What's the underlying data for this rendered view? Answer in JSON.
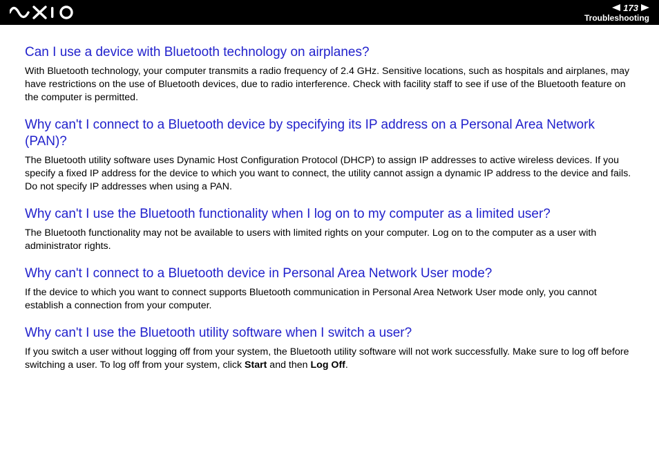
{
  "header": {
    "page_number": "173",
    "section_label": "Troubleshooting",
    "colors": {
      "bar_bg": "#000000",
      "text": "#ffffff"
    }
  },
  "content": {
    "question_color": "#2222cc",
    "body_text_color": "#000000",
    "qa": [
      {
        "question": "Can I use a device with Bluetooth technology on airplanes?",
        "answer": "With Bluetooth technology, your computer transmits a radio frequency of 2.4 GHz. Sensitive locations, such as hospitals and airplanes, may have restrictions on the use of Bluetooth devices, due to radio interference. Check with facility staff to see if use of the Bluetooth feature on the computer is permitted."
      },
      {
        "question": "Why can't I connect to a Bluetooth device by specifying its IP address on a Personal Area Network (PAN)?",
        "answer": "The Bluetooth utility software uses Dynamic Host Configuration Protocol (DHCP) to assign IP addresses to active wireless devices. If you specify a fixed IP address for the device to which you want to connect, the utility cannot assign a dynamic IP address to the device and fails. Do not specify IP addresses when using a PAN."
      },
      {
        "question": "Why can't I use the Bluetooth functionality when I log on to my computer as a limited user?",
        "answer": "The Bluetooth functionality may not be available to users with limited rights on your computer. Log on to the computer as a user with administrator rights."
      },
      {
        "question": "Why can't I connect to a Bluetooth device in Personal Area Network User mode?",
        "answer": "If the device to which you want to connect supports Bluetooth communication in Personal Area Network User mode only, you cannot establish a connection from your computer."
      },
      {
        "question": "Why can't I use the Bluetooth utility software when I switch a user?",
        "answer_html": "If you switch a user without logging off from your system, the Bluetooth utility software will not work successfully. Make sure to log off before switching a user. To log off from your system, click <strong>Start</strong> and then <strong>Log Off</strong>."
      }
    ]
  }
}
